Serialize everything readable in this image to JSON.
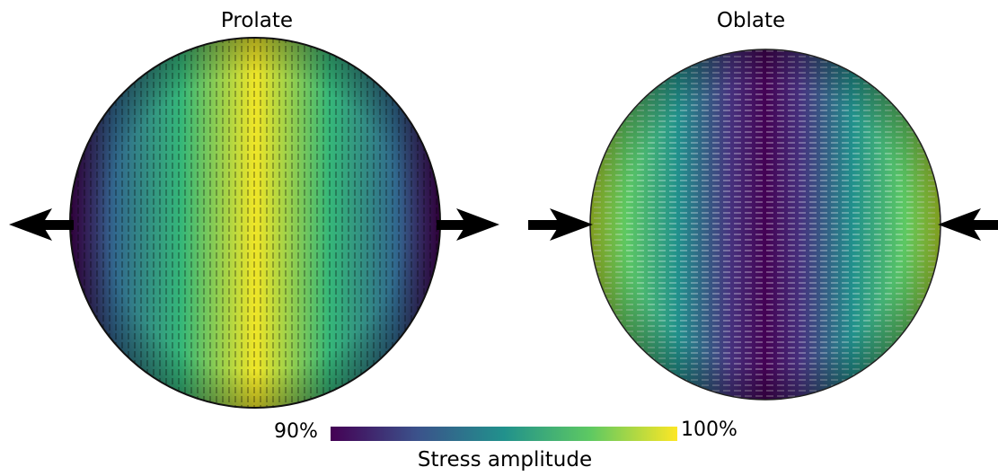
{
  "panels": [
    {
      "title": "Prolate",
      "arrows": "outward"
    },
    {
      "title": "Oblate",
      "arrows": "inward"
    }
  ],
  "colorbar": {
    "min_label": "90%",
    "max_label": "100%",
    "title": "Stress amplitude",
    "colormap": "viridis",
    "colors": [
      "#440154",
      "#3b528b",
      "#21918c",
      "#5ec962",
      "#fde725"
    ]
  }
}
